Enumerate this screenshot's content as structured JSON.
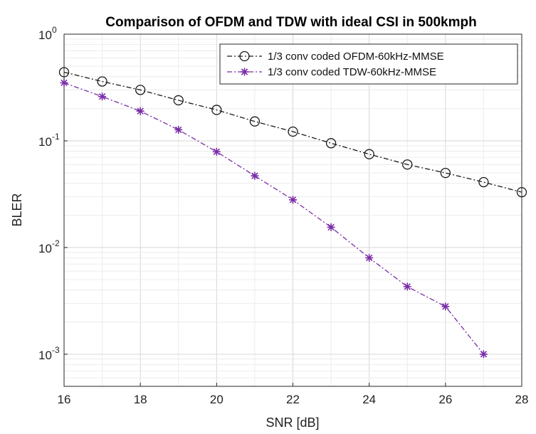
{
  "chart_data": {
    "type": "line",
    "title": "Comparison of OFDM and TDW with ideal CSI in 500kmph",
    "xlabel": "SNR [dB]",
    "ylabel": "BLER",
    "xlim": [
      16,
      28
    ],
    "ylim": [
      0.0005,
      1
    ],
    "yscale": "log",
    "grid": true,
    "legend_position": "top-right",
    "x_ticks": [
      "16",
      "18",
      "20",
      "22",
      "24",
      "26",
      "28"
    ],
    "y_ticks": [
      {
        "base": "10",
        "exp": "0"
      },
      {
        "base": "10",
        "exp": "-1"
      },
      {
        "base": "10",
        "exp": "-2"
      },
      {
        "base": "10",
        "exp": "-3"
      }
    ],
    "series": [
      {
        "name": "1/3 conv coded OFDM-60kHz-MMSE",
        "color": "#1a1a1a",
        "marker": "circle",
        "line_style": "dash-dot",
        "x": [
          16,
          17,
          18,
          19,
          20,
          21,
          22,
          23,
          24,
          25,
          26,
          27,
          28
        ],
        "y": [
          0.44,
          0.36,
          0.3,
          0.24,
          0.195,
          0.152,
          0.122,
          0.095,
          0.075,
          0.06,
          0.05,
          0.041,
          0.033
        ]
      },
      {
        "name": "1/3 conv coded TDW-60kHz-MMSE",
        "color": "#7a2ca8",
        "marker": "asterisk",
        "line_style": "dash-dot",
        "x": [
          16,
          17,
          18,
          19,
          20,
          21,
          22,
          23,
          24,
          25,
          26,
          27
        ],
        "y": [
          0.35,
          0.26,
          0.19,
          0.127,
          0.079,
          0.047,
          0.028,
          0.0155,
          0.008,
          0.0043,
          0.0028,
          0.001
        ]
      }
    ]
  }
}
